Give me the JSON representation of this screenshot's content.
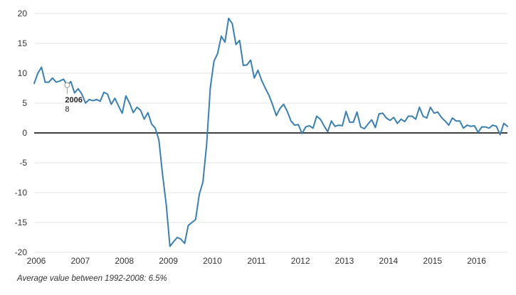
{
  "chart_data": {
    "type": "line",
    "title": "",
    "xlabel": "",
    "ylabel": "",
    "xlim": [
      2006,
      2016.75
    ],
    "ylim": [
      -20,
      20
    ],
    "x_ticks": [
      "2006",
      "2007",
      "2008",
      "2009",
      "2010",
      "2011",
      "2012",
      "2013",
      "2014",
      "2015",
      "2016"
    ],
    "y_ticks": [
      "20",
      "15",
      "10",
      "5",
      "0",
      "-5",
      "-10",
      "-15",
      "-20"
    ],
    "grid": "horizontal",
    "legend": "none",
    "colors": {
      "series": "#3a7fb0",
      "zero_line": "#000000",
      "grid": "#e4e4e4"
    },
    "annotation": {
      "year": "2006",
      "value": "8",
      "x": 2006.75,
      "y": 8
    },
    "footnote": "Average value between 1992-2008: 6.5%",
    "series": [
      {
        "name": "",
        "x_start": 2006,
        "step": "month",
        "values": [
          8.3,
          10.0,
          11.0,
          8.5,
          8.5,
          9.2,
          8.5,
          8.7,
          9.0,
          8.0,
          8.6,
          6.7,
          7.4,
          6.5,
          5.0,
          5.6,
          5.4,
          5.6,
          5.3,
          6.8,
          6.5,
          4.8,
          5.8,
          4.5,
          3.3,
          6.2,
          5.0,
          3.4,
          4.3,
          3.8,
          2.3,
          3.4,
          1.5,
          0.8,
          -1.2,
          -7.0,
          -12.0,
          -19.0,
          -18.2,
          -17.5,
          -17.8,
          -18.5,
          -15.5,
          -15.0,
          -14.5,
          -10.3,
          -8.2,
          -2.0,
          7.5,
          12.0,
          13.3,
          16.2,
          15.2,
          19.2,
          18.3,
          14.8,
          15.5,
          11.3,
          11.4,
          12.2,
          9.2,
          10.5,
          8.8,
          7.5,
          6.3,
          4.7,
          2.9,
          4.1,
          4.8,
          3.6,
          2.0,
          1.3,
          1.4,
          -0.1,
          1.0,
          1.2,
          0.8,
          2.8,
          2.3,
          1.2,
          0.2,
          2.0,
          1.1,
          1.3,
          1.2,
          3.6,
          1.8,
          1.8,
          3.5,
          1.0,
          0.7,
          1.5,
          2.2,
          0.9,
          3.2,
          3.3,
          2.5,
          2.1,
          2.6,
          1.6,
          2.3,
          1.9,
          2.8,
          2.8,
          2.3,
          4.3,
          2.8,
          2.5,
          4.3,
          3.3,
          3.5,
          2.6,
          2.0,
          1.3,
          2.5,
          2.0,
          2.0,
          0.8,
          1.3,
          1.1,
          1.2,
          0.1,
          1.0,
          1.0,
          0.8,
          1.3,
          1.1,
          -0.3,
          1.6,
          1.1
        ]
      }
    ]
  }
}
